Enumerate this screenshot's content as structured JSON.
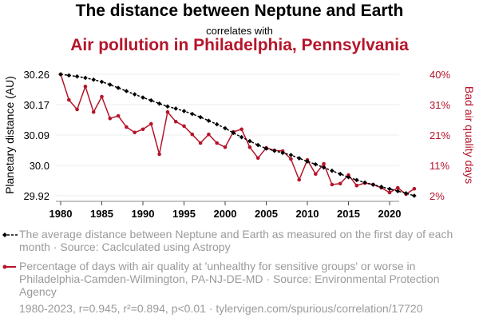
{
  "header": {
    "title": "The distance between Neptune and Earth",
    "connector": "correlates with",
    "subtitle": "Air pollution in Philadelphia, Pennsylvania"
  },
  "colors": {
    "series1": "#000000",
    "series2": "#b5152b",
    "grid": "#eeeeee",
    "muted": "#9a9a9a"
  },
  "legend": {
    "series1": "The average distance between Neptune and Earth as measured on the first day of each month · Source: Caclculated using Astropy",
    "series2": "Percentage of days with air quality at 'unhealthy for sensitive groups' or worse in Philadelphia-Camden-Wilmington, PA-NJ-DE-MD · Source: Environmental Protection Agency"
  },
  "footer": "1980-2023, r=0.945, r²=0.894, p<0.01 · tylervigen.com/spurious/correlation/17720",
  "chart_data": {
    "type": "line",
    "title": "The distance between Neptune and Earth correlates with Air pollution in Philadelphia, Pennsylvania",
    "xlabel": "",
    "ylabel_left": "Planetary distance (AU)",
    "ylabel_right": "Bad air quality days",
    "x_ticks": [
      1980,
      1985,
      1990,
      1995,
      2000,
      2005,
      2010,
      2015,
      2020
    ],
    "x_range": [
      1980,
      2023
    ],
    "y_left_ticks": [
      "30.26",
      "30.17",
      "30.09",
      "30.0",
      "29.92"
    ],
    "y_left_range": [
      29.92,
      30.26
    ],
    "y_right_ticks": [
      "40%",
      "31%",
      "21%",
      "11%",
      "2%"
    ],
    "y_right_range": [
      2,
      40
    ],
    "grid": true,
    "legend_placement": "bottom",
    "x": [
      1980,
      1981,
      1982,
      1983,
      1984,
      1985,
      1986,
      1987,
      1988,
      1989,
      1990,
      1991,
      1992,
      1993,
      1994,
      1995,
      1996,
      1997,
      1998,
      1999,
      2000,
      2001,
      2002,
      2003,
      2004,
      2005,
      2006,
      2007,
      2008,
      2009,
      2010,
      2011,
      2012,
      2013,
      2014,
      2015,
      2016,
      2017,
      2018,
      2019,
      2020,
      2021,
      2022,
      2023
    ],
    "series": [
      {
        "name": "Planetary distance (AU)",
        "axis": "left",
        "style": "dashed-diamond",
        "values": [
          30.26,
          30.257,
          30.254,
          30.25,
          30.245,
          30.239,
          30.231,
          30.222,
          30.213,
          30.204,
          30.195,
          30.187,
          30.178,
          30.17,
          30.164,
          30.157,
          30.149,
          30.14,
          30.13,
          30.12,
          30.109,
          30.096,
          30.084,
          30.073,
          30.062,
          30.052,
          30.046,
          30.04,
          30.034,
          30.025,
          30.016,
          30.008,
          29.999,
          29.99,
          29.981,
          29.972,
          29.964,
          29.957,
          29.951,
          29.945,
          29.939,
          29.933,
          29.927,
          29.92
        ]
      },
      {
        "name": "Bad air quality days (%)",
        "axis": "right",
        "style": "solid-dot",
        "values": [
          40.0,
          32.0,
          29.0,
          36.2,
          28.2,
          33.0,
          26.2,
          27.0,
          23.5,
          21.8,
          22.8,
          24.5,
          15.0,
          28.2,
          25.2,
          23.8,
          21.2,
          18.5,
          21.2,
          18.5,
          17.2,
          22.0,
          22.8,
          17.2,
          13.8,
          17.0,
          16.2,
          16.0,
          13.5,
          7.0,
          13.2,
          8.8,
          12.0,
          5.5,
          5.8,
          8.5,
          5.2,
          6.0,
          5.5,
          4.5,
          3.0,
          4.5,
          2.5,
          4.2
        ]
      }
    ]
  }
}
